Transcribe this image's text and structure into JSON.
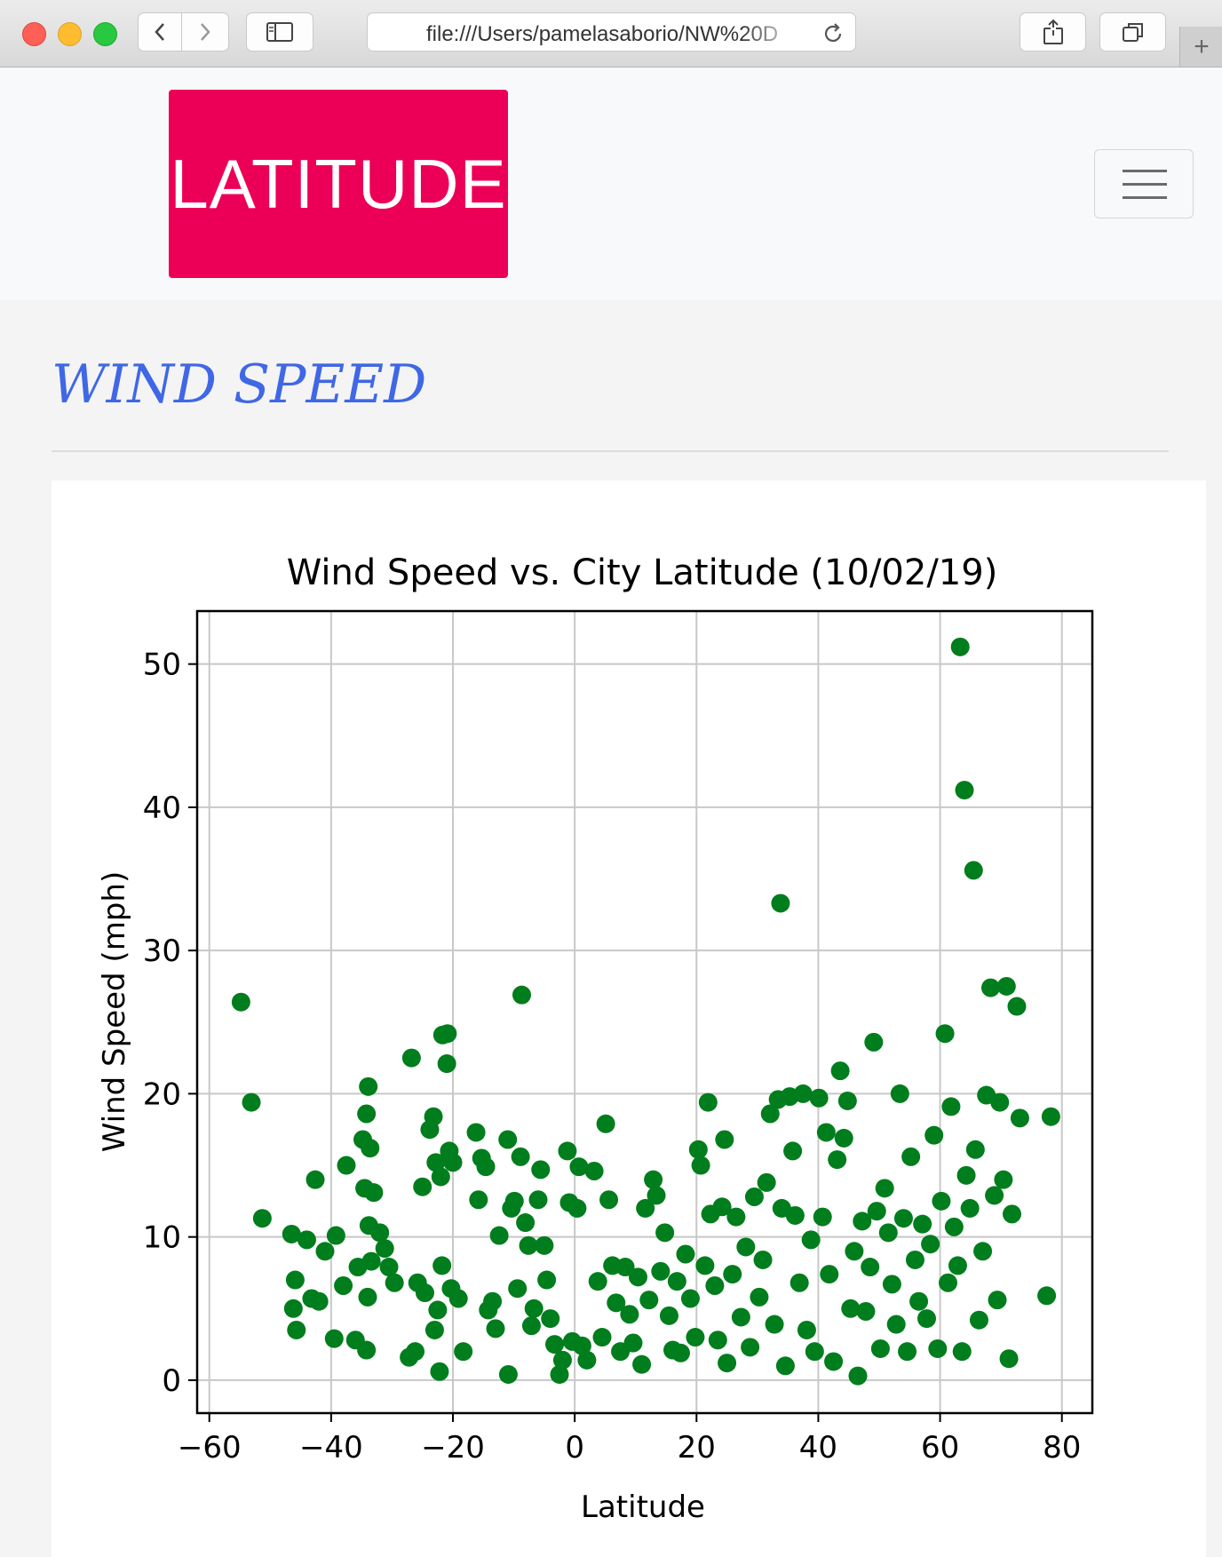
{
  "browser": {
    "url": "file:///Users/pamelasaborio/NW%20D",
    "new_tab_label": "+"
  },
  "navbar": {
    "brand": "LATITUDE",
    "menu_icon": "hamburger-icon",
    "brand_color": "#ec0057"
  },
  "page": {
    "title": "WIND SPEED",
    "title_color": "#3f67e6"
  },
  "chart_data": {
    "type": "scatter",
    "title": "Wind Speed vs. City Latitude (10/02/19)",
    "xlabel": "Latitude",
    "ylabel": "Wind Speed (mph)",
    "xlim": [
      -62,
      85
    ],
    "ylim": [
      -2.3,
      53.7
    ],
    "xticks": [
      -60,
      -40,
      -20,
      0,
      20,
      40,
      60,
      80
    ],
    "xtick_labels": [
      "−60",
      "−40",
      "−20",
      "0",
      "20",
      "40",
      "60",
      "80"
    ],
    "yticks": [
      0,
      10,
      20,
      30,
      40,
      50
    ],
    "ytick_labels": [
      "0",
      "10",
      "20",
      "30",
      "40",
      "50"
    ],
    "grid": true,
    "marker_color": "#007d1c",
    "series": [
      {
        "points": [
          [
            -54.8,
            26.4
          ],
          [
            -53.1,
            19.4
          ],
          [
            -51.3,
            11.3
          ],
          [
            -46.5,
            10.2
          ],
          [
            -45.9,
            7.0
          ],
          [
            -46.2,
            5.0
          ],
          [
            -45.7,
            3.5
          ],
          [
            -44.0,
            9.8
          ],
          [
            -42.6,
            14.0
          ],
          [
            -43.2,
            5.7
          ],
          [
            -42.0,
            5.5
          ],
          [
            -41.0,
            9.0
          ],
          [
            -39.2,
            10.1
          ],
          [
            -39.5,
            2.9
          ],
          [
            -38.0,
            6.6
          ],
          [
            -37.5,
            15.0
          ],
          [
            -36.0,
            2.8
          ],
          [
            -35.6,
            7.9
          ],
          [
            -34.8,
            16.8
          ],
          [
            -34.2,
            18.6
          ],
          [
            -33.9,
            20.5
          ],
          [
            -34.5,
            13.4
          ],
          [
            -33.6,
            16.2
          ],
          [
            -33.0,
            13.1
          ],
          [
            -33.8,
            10.8
          ],
          [
            -34.0,
            5.8
          ],
          [
            -34.2,
            2.1
          ],
          [
            -33.4,
            8.3
          ],
          [
            -32.0,
            10.3
          ],
          [
            -31.2,
            9.2
          ],
          [
            -30.5,
            7.9
          ],
          [
            -29.6,
            6.8
          ],
          [
            -27.2,
            1.6
          ],
          [
            -26.8,
            22.5
          ],
          [
            -26.2,
            2.0
          ],
          [
            -25.8,
            6.8
          ],
          [
            -25.0,
            13.5
          ],
          [
            -24.6,
            6.1
          ],
          [
            -23.8,
            17.5
          ],
          [
            -23.2,
            18.4
          ],
          [
            -22.8,
            15.2
          ],
          [
            -22.0,
            14.2
          ],
          [
            -21.7,
            24.1
          ],
          [
            -20.9,
            24.2
          ],
          [
            -21.0,
            22.1
          ],
          [
            -20.6,
            16.0
          ],
          [
            -20.0,
            15.2
          ],
          [
            -21.8,
            8.0
          ],
          [
            -22.5,
            4.9
          ],
          [
            -23.0,
            3.5
          ],
          [
            -22.2,
            0.6
          ],
          [
            -20.3,
            6.4
          ],
          [
            -19.1,
            5.7
          ],
          [
            -18.3,
            2.0
          ],
          [
            -16.2,
            17.3
          ],
          [
            -15.8,
            12.6
          ],
          [
            -15.3,
            15.5
          ],
          [
            -14.6,
            14.9
          ],
          [
            -14.2,
            4.9
          ],
          [
            -13.5,
            5.5
          ],
          [
            -13.0,
            3.6
          ],
          [
            -12.4,
            10.1
          ],
          [
            -11.0,
            16.8
          ],
          [
            -10.9,
            0.4
          ],
          [
            -10.4,
            12.0
          ],
          [
            -9.9,
            12.5
          ],
          [
            -9.4,
            6.4
          ],
          [
            -8.9,
            15.6
          ],
          [
            -8.7,
            26.9
          ],
          [
            -8.1,
            11.0
          ],
          [
            -7.6,
            9.4
          ],
          [
            -7.1,
            3.8
          ],
          [
            -6.7,
            5.0
          ],
          [
            -6.0,
            12.6
          ],
          [
            -5.6,
            14.7
          ],
          [
            -5.0,
            9.4
          ],
          [
            -4.6,
            7.0
          ],
          [
            -4.0,
            4.3
          ],
          [
            -3.3,
            2.5
          ],
          [
            -2.5,
            0.4
          ],
          [
            -2.0,
            1.4
          ],
          [
            -1.2,
            16.0
          ],
          [
            -0.9,
            12.4
          ],
          [
            -0.4,
            2.7
          ],
          [
            0.4,
            12.0
          ],
          [
            0.7,
            14.9
          ],
          [
            1.2,
            2.4
          ],
          [
            2.0,
            1.4
          ],
          [
            3.2,
            14.6
          ],
          [
            3.8,
            6.9
          ],
          [
            4.5,
            3.0
          ],
          [
            5.1,
            17.9
          ],
          [
            5.6,
            12.6
          ],
          [
            6.2,
            8.0
          ],
          [
            6.8,
            5.4
          ],
          [
            7.5,
            2.0
          ],
          [
            8.3,
            7.9
          ],
          [
            9.0,
            4.6
          ],
          [
            9.6,
            2.6
          ],
          [
            10.4,
            7.2
          ],
          [
            11.0,
            1.1
          ],
          [
            11.6,
            12.0
          ],
          [
            12.2,
            5.6
          ],
          [
            12.9,
            14.0
          ],
          [
            13.4,
            12.9
          ],
          [
            14.1,
            7.6
          ],
          [
            14.8,
            10.3
          ],
          [
            15.5,
            4.5
          ],
          [
            16.1,
            2.1
          ],
          [
            16.8,
            6.9
          ],
          [
            17.4,
            1.9
          ],
          [
            18.2,
            8.8
          ],
          [
            19.0,
            5.7
          ],
          [
            19.8,
            3.0
          ],
          [
            20.3,
            16.1
          ],
          [
            20.7,
            15.0
          ],
          [
            21.4,
            8.0
          ],
          [
            21.9,
            19.4
          ],
          [
            22.3,
            11.6
          ],
          [
            23.0,
            6.6
          ],
          [
            23.5,
            2.8
          ],
          [
            24.2,
            12.1
          ],
          [
            24.6,
            16.8
          ],
          [
            25.0,
            1.2
          ],
          [
            25.9,
            7.4
          ],
          [
            26.5,
            11.4
          ],
          [
            27.3,
            4.4
          ],
          [
            28.1,
            9.3
          ],
          [
            28.8,
            2.3
          ],
          [
            29.5,
            12.8
          ],
          [
            30.3,
            5.8
          ],
          [
            30.9,
            8.4
          ],
          [
            31.5,
            13.8
          ],
          [
            32.1,
            18.6
          ],
          [
            32.8,
            3.9
          ],
          [
            33.4,
            19.6
          ],
          [
            33.8,
            33.3
          ],
          [
            34.0,
            12.0
          ],
          [
            34.6,
            1.0
          ],
          [
            35.3,
            19.8
          ],
          [
            35.8,
            16.0
          ],
          [
            36.2,
            11.5
          ],
          [
            36.9,
            6.8
          ],
          [
            37.5,
            20.0
          ],
          [
            38.1,
            3.5
          ],
          [
            38.8,
            9.8
          ],
          [
            39.4,
            2.0
          ],
          [
            40.1,
            19.7
          ],
          [
            40.7,
            11.4
          ],
          [
            41.3,
            17.3
          ],
          [
            41.8,
            7.4
          ],
          [
            42.5,
            1.3
          ],
          [
            43.1,
            15.4
          ],
          [
            43.6,
            21.6
          ],
          [
            44.2,
            16.9
          ],
          [
            44.8,
            19.5
          ],
          [
            45.3,
            5.0
          ],
          [
            45.9,
            9.0
          ],
          [
            46.5,
            0.3
          ],
          [
            47.2,
            11.1
          ],
          [
            47.8,
            4.8
          ],
          [
            48.5,
            7.9
          ],
          [
            49.1,
            23.6
          ],
          [
            49.6,
            11.8
          ],
          [
            50.2,
            2.2
          ],
          [
            50.9,
            13.4
          ],
          [
            51.5,
            10.3
          ],
          [
            52.1,
            6.7
          ],
          [
            52.8,
            3.9
          ],
          [
            53.4,
            20.0
          ],
          [
            54.0,
            11.3
          ],
          [
            54.6,
            2.0
          ],
          [
            55.2,
            15.6
          ],
          [
            55.9,
            8.4
          ],
          [
            56.5,
            5.5
          ],
          [
            57.1,
            10.9
          ],
          [
            57.8,
            4.3
          ],
          [
            58.4,
            9.5
          ],
          [
            59.0,
            17.1
          ],
          [
            59.6,
            2.2
          ],
          [
            60.2,
            12.5
          ],
          [
            60.8,
            24.2
          ],
          [
            61.3,
            6.8
          ],
          [
            61.8,
            19.1
          ],
          [
            62.3,
            10.7
          ],
          [
            62.9,
            8.0
          ],
          [
            63.3,
            51.2
          ],
          [
            63.6,
            2.0
          ],
          [
            64.0,
            41.2
          ],
          [
            64.3,
            14.3
          ],
          [
            64.9,
            12.0
          ],
          [
            65.5,
            35.6
          ],
          [
            65.8,
            16.1
          ],
          [
            66.4,
            4.2
          ],
          [
            67.0,
            9.0
          ],
          [
            67.6,
            19.9
          ],
          [
            68.3,
            27.4
          ],
          [
            68.9,
            12.9
          ],
          [
            69.4,
            5.6
          ],
          [
            69.8,
            19.4
          ],
          [
            70.4,
            14.0
          ],
          [
            70.9,
            27.5
          ],
          [
            71.3,
            1.5
          ],
          [
            71.8,
            11.6
          ],
          [
            72.6,
            26.1
          ],
          [
            73.1,
            18.3
          ],
          [
            77.5,
            5.9
          ],
          [
            78.2,
            18.4
          ]
        ]
      }
    ]
  }
}
